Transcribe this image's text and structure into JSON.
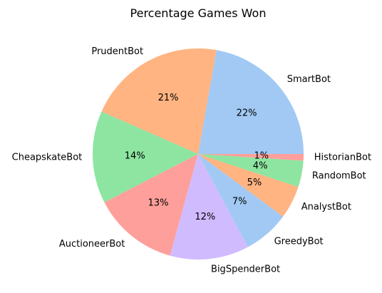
{
  "chart_data": {
    "type": "pie",
    "title": "Percentage Games Won",
    "start_angle_deg": 0,
    "direction": "counterclockwise",
    "slices": [
      {
        "label": "SmartBot",
        "value": 22,
        "pct_label": "22%",
        "color": "#a1c9f4"
      },
      {
        "label": "PrudentBot",
        "value": 21,
        "pct_label": "21%",
        "color": "#ffb482"
      },
      {
        "label": "CheapskateBot",
        "value": 14,
        "pct_label": "14%",
        "color": "#8de5a1"
      },
      {
        "label": "AuctioneerBot",
        "value": 13,
        "pct_label": "13%",
        "color": "#ff9f9b"
      },
      {
        "label": "BigSpenderBot",
        "value": 12,
        "pct_label": "12%",
        "color": "#d0bbff"
      },
      {
        "label": "GreedyBot",
        "value": 7,
        "pct_label": "7%",
        "color": "#a1c9f4"
      },
      {
        "label": "AnalystBot",
        "value": 5,
        "pct_label": "5%",
        "color": "#ffb482"
      },
      {
        "label": "RandomBot",
        "value": 4,
        "pct_label": "4%",
        "color": "#8de5a1"
      },
      {
        "label": "HistorianBot",
        "value": 1,
        "pct_label": "1%",
        "color": "#ff9f9b"
      }
    ]
  }
}
